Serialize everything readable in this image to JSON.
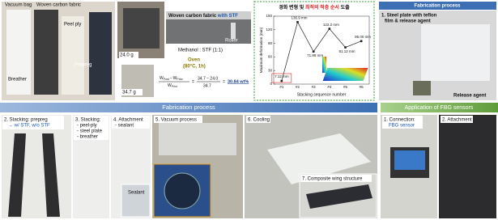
{
  "top_left": {
    "vacuum_bag": "Vacuum bag",
    "woven_carbon_fabric": "Woven carbon fabric",
    "peel_ply": "Peel ply",
    "breather": "Breather",
    "prepreg": "Prepreg"
  },
  "stf": {
    "weight_prior": "24.0 g",
    "title_prefix": "Woven carbon fabric ",
    "title_highlight": "with STF",
    "roller": "Roller",
    "methanol": "Methanol : STF (1:1)",
    "oven": "Oven",
    "oven_condition": "(80°C, 1h)",
    "weight_post": "34.7 g"
  },
  "formula": {
    "w": "W",
    "post": "Post",
    "prior": "Prior",
    "minus": "−",
    "eq": "=",
    "num": "34.7 − 24.0",
    "den": "34.7",
    "result": "30.84 wt%"
  },
  "chart_data": {
    "type": "line",
    "title": [
      "경화 변형 및 ",
      "최적의 적층 순서",
      " 도출"
    ],
    "x_label": "Stacking sequence number",
    "y_label": "Maximum deformation (mm)",
    "categories": [
      "#1",
      "#2",
      "#3",
      "#4",
      "#5",
      "#6"
    ],
    "series": [
      {
        "color": "#222222",
        "values": [
          7.12,
          136.9,
          71.89,
          122.2,
          81.12,
          95.0
        ],
        "value_labels": [
          "7.12 mm",
          "136.9 mm",
          "71.89 mm",
          "122.2 mm",
          "81.12 mm",
          "95.00 mm"
        ]
      }
    ],
    "ylim": [
      0,
      150
    ],
    "yticks": [
      0,
      30,
      60,
      90,
      120,
      150
    ]
  },
  "fabrication_header": "Fabrication process",
  "step1": {
    "line1": "1. Steel plate with teflon",
    "line2": "film & release agent",
    "release_agent": "Release agent"
  },
  "band": {
    "fabrication": "Fabrication process",
    "fbg": "Application of FBG sensors"
  },
  "steps": {
    "s2": {
      "line1": "2. Stacking: prepreg",
      "line2": "→ w/ STF, w/o STF"
    },
    "s3": {
      "line1": "3. Stacking:",
      "line2": "- peel-ply",
      "line3": "- steel plate",
      "line4": "- breather"
    },
    "s4": {
      "line1": "4. Attachment",
      "line2": "- sealant",
      "sealant": "Sealant"
    },
    "s5": "5. Vacuum process",
    "s6": "6. Cooling",
    "s7": "7. Composite wing structure",
    "f1": {
      "line1": "1. Connection:",
      "line2": "FBG sensor"
    },
    "f2": "2. Attachment"
  }
}
